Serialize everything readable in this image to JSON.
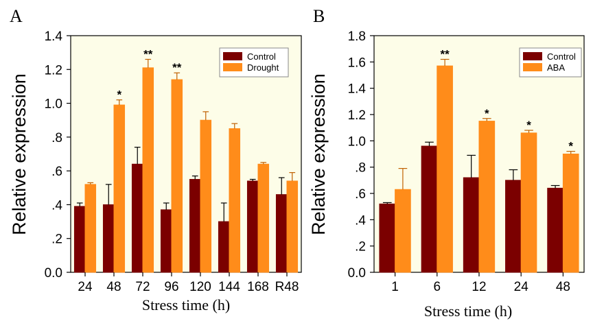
{
  "chart_data": [
    {
      "panel_label": "A",
      "type": "bar",
      "categories": [
        "24",
        "48",
        "72",
        "96",
        "120",
        "144",
        "168",
        "R48"
      ],
      "ytick_labels": [
        "0.0",
        ".2",
        ".4",
        ".6",
        ".8",
        "1.0",
        "1.2",
        "1.4"
      ],
      "ylim": [
        0,
        1.4
      ],
      "xlabel": "Stress time (h)",
      "ylabel": "Relative expression",
      "legend_position": "top-right",
      "grid": false,
      "background": "#fdfde8",
      "series": [
        {
          "name": "Control",
          "color": "#7b0000",
          "values": [
            0.39,
            0.4,
            0.64,
            0.37,
            0.55,
            0.3,
            0.54,
            0.46
          ],
          "errors": [
            0.02,
            0.12,
            0.1,
            0.04,
            0.02,
            0.11,
            0.01,
            0.1
          ],
          "significance": [
            "",
            "",
            "",
            "",
            "",
            "",
            "",
            ""
          ]
        },
        {
          "name": "Drought",
          "color": "#ff8c1a",
          "values": [
            0.52,
            0.99,
            1.21,
            1.14,
            0.9,
            0.85,
            0.64,
            0.54
          ],
          "errors": [
            0.01,
            0.03,
            0.05,
            0.04,
            0.05,
            0.03,
            0.01,
            0.05
          ],
          "significance": [
            "",
            "*",
            "**",
            "**",
            "",
            "",
            "",
            ""
          ]
        }
      ]
    },
    {
      "panel_label": "B",
      "type": "bar",
      "categories": [
        "1",
        "6",
        "12",
        "24",
        "48"
      ],
      "ytick_labels": [
        "0.0",
        ".2",
        ".4",
        ".6",
        ".8",
        "1.0",
        "1.2",
        "1.4",
        "1.6",
        "1.8"
      ],
      "ylim": [
        0,
        1.8
      ],
      "xlabel": "Stress time (h)",
      "ylabel": "Relative expression",
      "legend_position": "top-right",
      "grid": false,
      "background": "#fdfde8",
      "series": [
        {
          "name": "Control",
          "color": "#7b0000",
          "values": [
            0.52,
            0.96,
            0.72,
            0.7,
            0.64
          ],
          "errors": [
            0.01,
            0.03,
            0.17,
            0.08,
            0.02
          ],
          "significance": [
            "",
            "",
            "",
            "",
            ""
          ]
        },
        {
          "name": "ABA",
          "color": "#ff8c1a",
          "values": [
            0.63,
            1.57,
            1.15,
            1.06,
            0.9
          ],
          "errors": [
            0.16,
            0.05,
            0.02,
            0.02,
            0.02
          ],
          "significance": [
            "",
            "**",
            "*",
            "*",
            "*"
          ]
        }
      ]
    }
  ]
}
